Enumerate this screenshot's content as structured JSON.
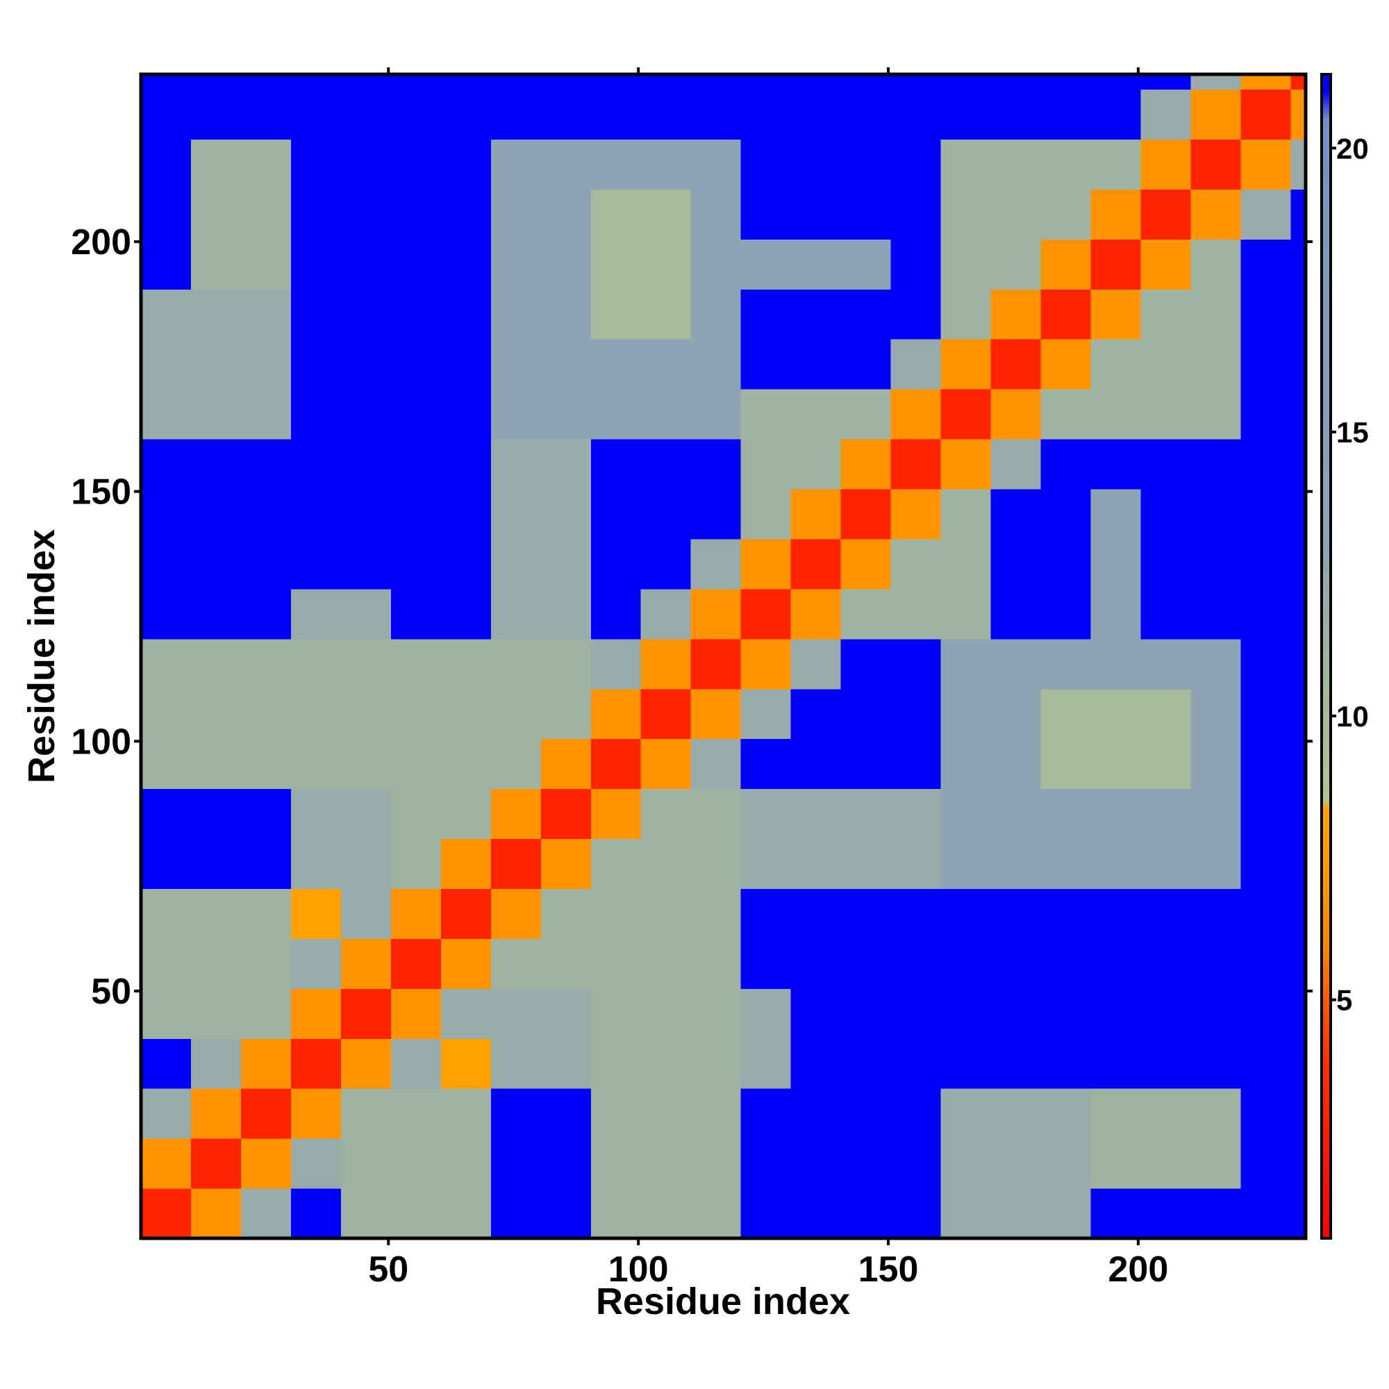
{
  "chart_data": {
    "type": "heatmap",
    "xlabel": "Residue index",
    "ylabel": "Residue index",
    "xlim": [
      0.5,
      233.5
    ],
    "ylim": [
      0.5,
      233.5
    ],
    "xticks": [
      50,
      100,
      150,
      200
    ],
    "yticks": [
      50,
      100,
      150,
      200
    ],
    "bins": [
      0.5,
      10.5,
      20.5,
      30.5,
      40.5,
      50.5,
      60.5,
      70.5,
      80.5,
      90.5,
      100.5,
      110.5,
      120.5,
      130.5,
      140.5,
      150.5,
      160.5,
      170.5,
      180.5,
      190.5,
      200.5,
      210.5,
      220.5,
      230.5,
      233.5
    ],
    "clim": [
      0.8,
      21.3
    ],
    "cticks": [
      5,
      10,
      15,
      20
    ],
    "colorscale": [
      [
        0.8,
        "#ff0000"
      ],
      [
        4,
        "#ff3300"
      ],
      [
        6,
        "#ff8800"
      ],
      [
        8.4,
        "#ffa500"
      ],
      [
        8.5,
        "#b4c48e"
      ],
      [
        11,
        "#9fb4a0"
      ],
      [
        13,
        "#8ea4b4"
      ],
      [
        20.5,
        "#7392c2"
      ],
      [
        21,
        "#0000ff"
      ],
      [
        21.3,
        "#0000ff"
      ]
    ],
    "z": [
      [
        3,
        7,
        12,
        21,
        11,
        11,
        11,
        21,
        21,
        11,
        11,
        11,
        21,
        21,
        21,
        21,
        12,
        12,
        12,
        21,
        21,
        21,
        21,
        21
      ],
      [
        7,
        3,
        7,
        12,
        11,
        11,
        11,
        21,
        21,
        11,
        11,
        11,
        21,
        21,
        21,
        21,
        12,
        12,
        12,
        11,
        11,
        11,
        21,
        21
      ],
      [
        12,
        7,
        3,
        7,
        11,
        11,
        11,
        21,
        21,
        11,
        11,
        11,
        21,
        21,
        21,
        21,
        12,
        12,
        12,
        11,
        11,
        11,
        21,
        21
      ],
      [
        21,
        12,
        7,
        3,
        7,
        12,
        8,
        12,
        12,
        11,
        11,
        11,
        12,
        21,
        21,
        21,
        21,
        21,
        21,
        21,
        21,
        21,
        21,
        21
      ],
      [
        11,
        11,
        11,
        7,
        3,
        7,
        12,
        12,
        12,
        11,
        11,
        11,
        12,
        21,
        21,
        21,
        21,
        21,
        21,
        21,
        21,
        21,
        21,
        21
      ],
      [
        11,
        11,
        11,
        12,
        7,
        3,
        7,
        11,
        11,
        11,
        11,
        11,
        21,
        21,
        21,
        21,
        21,
        21,
        21,
        21,
        21,
        21,
        21,
        21
      ],
      [
        11,
        11,
        11,
        8,
        12,
        7,
        3,
        7,
        11,
        11,
        11,
        11,
        21,
        21,
        21,
        21,
        21,
        21,
        21,
        21,
        21,
        21,
        21,
        21
      ],
      [
        21,
        21,
        21,
        12,
        12,
        11,
        7,
        3,
        7,
        11,
        11,
        11,
        12,
        12,
        12,
        12,
        13,
        13,
        13,
        13,
        13,
        13,
        21,
        21
      ],
      [
        21,
        21,
        21,
        12,
        12,
        11,
        11,
        7,
        3,
        7,
        11,
        11,
        12,
        12,
        12,
        12,
        13,
        13,
        13,
        13,
        13,
        13,
        21,
        21
      ],
      [
        11,
        11,
        11,
        11,
        11,
        11,
        11,
        11,
        7,
        3,
        7,
        12,
        21,
        21,
        21,
        21,
        13,
        13,
        10,
        10,
        10,
        13,
        21,
        21
      ],
      [
        11,
        11,
        11,
        11,
        11,
        11,
        11,
        11,
        11,
        7,
        3,
        7,
        12,
        21,
        21,
        21,
        13,
        13,
        10,
        10,
        10,
        13,
        21,
        21
      ],
      [
        11,
        11,
        11,
        11,
        11,
        11,
        11,
        11,
        11,
        12,
        7,
        3,
        7,
        12,
        21,
        21,
        13,
        13,
        13,
        13,
        13,
        13,
        21,
        21
      ],
      [
        21,
        21,
        21,
        12,
        12,
        21,
        21,
        12,
        12,
        21,
        12,
        7,
        3,
        7,
        11,
        11,
        11,
        21,
        21,
        13,
        21,
        21,
        21,
        21
      ],
      [
        21,
        21,
        21,
        21,
        21,
        21,
        21,
        12,
        12,
        21,
        21,
        12,
        7,
        3,
        7,
        11,
        11,
        21,
        21,
        13,
        21,
        21,
        21,
        21
      ],
      [
        21,
        21,
        21,
        21,
        21,
        21,
        21,
        12,
        12,
        21,
        21,
        21,
        11,
        7,
        3,
        7,
        11,
        21,
        21,
        13,
        21,
        21,
        21,
        21
      ],
      [
        21,
        21,
        21,
        21,
        21,
        21,
        21,
        12,
        12,
        21,
        21,
        21,
        11,
        11,
        7,
        3,
        7,
        12,
        21,
        21,
        21,
        21,
        21,
        21
      ],
      [
        12,
        12,
        12,
        21,
        21,
        21,
        21,
        13,
        13,
        13,
        13,
        13,
        11,
        11,
        11,
        7,
        3,
        7,
        11,
        11,
        11,
        11,
        21,
        21
      ],
      [
        12,
        12,
        12,
        21,
        21,
        21,
        21,
        13,
        13,
        13,
        13,
        13,
        21,
        21,
        21,
        12,
        7,
        3,
        7,
        11,
        11,
        11,
        21,
        21
      ],
      [
        12,
        12,
        12,
        21,
        21,
        21,
        21,
        13,
        13,
        10,
        10,
        13,
        21,
        21,
        21,
        21,
        11,
        7,
        3,
        7,
        11,
        11,
        21,
        21
      ],
      [
        21,
        11,
        11,
        21,
        21,
        21,
        21,
        13,
        13,
        10,
        10,
        13,
        13,
        13,
        13,
        21,
        11,
        11,
        7,
        3,
        7,
        11,
        21,
        21
      ],
      [
        21,
        11,
        11,
        21,
        21,
        21,
        21,
        13,
        13,
        10,
        10,
        13,
        21,
        21,
        21,
        21,
        11,
        11,
        11,
        7,
        3,
        7,
        12,
        21
      ],
      [
        21,
        11,
        11,
        21,
        21,
        21,
        21,
        13,
        13,
        13,
        13,
        13,
        21,
        21,
        21,
        21,
        11,
        11,
        11,
        11,
        7,
        3,
        7,
        12
      ],
      [
        21,
        21,
        21,
        21,
        21,
        21,
        21,
        21,
        21,
        21,
        21,
        21,
        21,
        21,
        21,
        21,
        21,
        21,
        21,
        21,
        12,
        7,
        3,
        7
      ],
      [
        21,
        21,
        21,
        21,
        21,
        21,
        21,
        21,
        21,
        21,
        21,
        21,
        21,
        21,
        21,
        21,
        21,
        21,
        21,
        21,
        21,
        12,
        7,
        3
      ]
    ]
  }
}
